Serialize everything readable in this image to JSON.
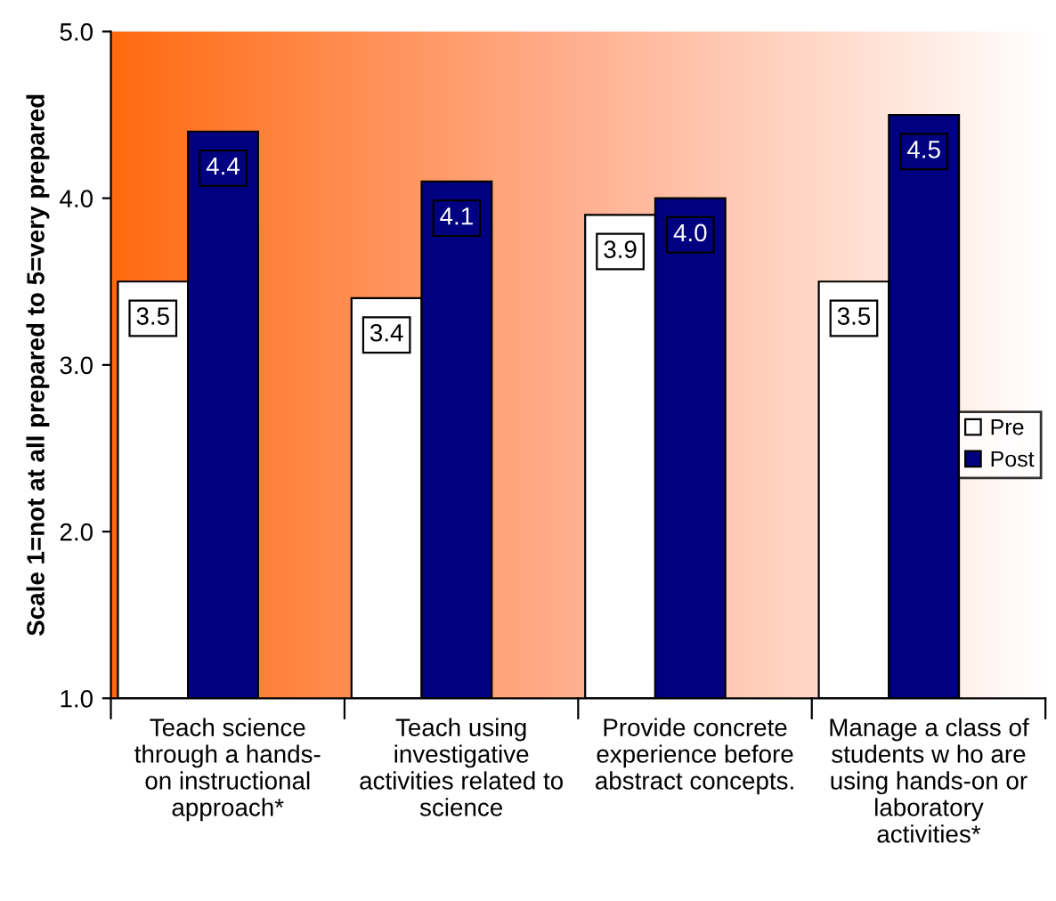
{
  "chart_data": {
    "type": "bar",
    "ylabel": "Scale 1=not at all prepared to 5=very prepared",
    "categories": [
      "Teach science\nthrough a hands-\non instructional\napproach*",
      "Teach using\ninvestigative\nactivities related to\nscience",
      "Provide concrete\nexperience before\nabstract concepts.",
      "Manage a class of\nstudents w ho are\nusing hands-on or\nlaboratory\nactivities*"
    ],
    "series": [
      {
        "name": "Pre",
        "color": "#ffffff",
        "values": [
          3.5,
          3.4,
          3.9,
          3.5
        ],
        "value_labels": [
          "3.5",
          "3.4",
          "3.9",
          "3.5"
        ]
      },
      {
        "name": "Post",
        "color": "#000080",
        "values": [
          4.4,
          4.1,
          4.0,
          4.5
        ],
        "value_labels": [
          "4.4",
          "4.1",
          "4.0",
          "4.5"
        ]
      }
    ],
    "ylim": [
      1.0,
      5.0
    ],
    "yticks": [
      {
        "value": 1.0,
        "label": "1.0"
      },
      {
        "value": 2.0,
        "label": "2.0"
      },
      {
        "value": 3.0,
        "label": "3.0"
      },
      {
        "value": 4.0,
        "label": "4.0"
      },
      {
        "value": 5.0,
        "label": "5.0"
      }
    ],
    "grid": false,
    "legend": "right"
  }
}
